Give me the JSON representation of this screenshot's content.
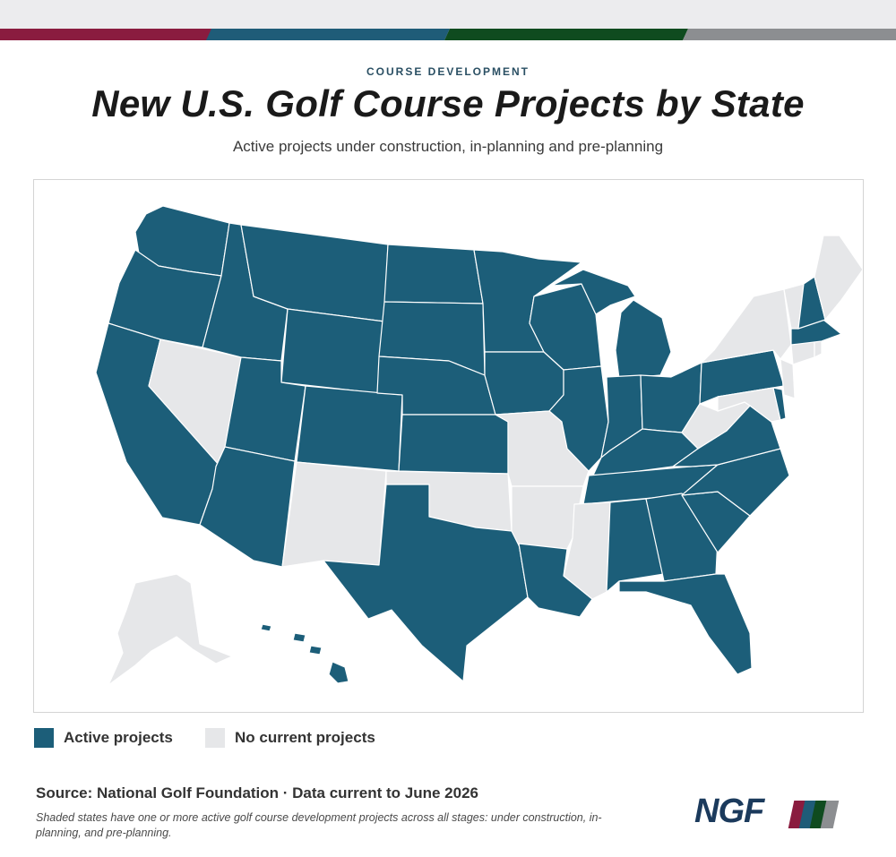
{
  "header": {
    "eyebrow": "COURSE DEVELOPMENT",
    "title": "New U.S. Golf Course Projects by State",
    "subtitle": "Active projects under construction, in-planning and pre-planning"
  },
  "colors": {
    "active": "#1c5e79",
    "inactive": "#e6e7e9",
    "border": "#ffffff",
    "stripe_1": "#8a1c3f",
    "stripe_2": "#1f5c78",
    "stripe_3": "#0f4b1f",
    "stripe_4": "#8c8e91"
  },
  "legend": {
    "active_label": "Active projects",
    "inactive_label": "No current projects"
  },
  "states": {
    "active": [
      "WA",
      "OR",
      "CA",
      "ID",
      "NV_no",
      "MT",
      "WY",
      "UT",
      "AZ",
      "CO",
      "ND",
      "SD",
      "NE",
      "KS",
      "TX",
      "MN",
      "IA",
      "WI",
      "IL",
      "MI",
      "IN",
      "OH",
      "KY",
      "TN",
      "AL",
      "GA",
      "SC",
      "NC",
      "VA",
      "FL",
      "LA",
      "PA",
      "NH",
      "MA",
      "HI",
      "DE"
    ],
    "inactive": [
      "NV",
      "NM",
      "OK",
      "MO",
      "AR",
      "MS",
      "WV",
      "NY",
      "VT",
      "ME",
      "CT",
      "RI",
      "NJ",
      "MD",
      "AK"
    ]
  },
  "footer": {
    "source": "Source: National Golf Foundation · Data current to June 2026",
    "note": "Shaded states have one or more active golf course development projects across all stages: under construction, in-planning, and pre-planning.",
    "logo_text": "NGF"
  }
}
